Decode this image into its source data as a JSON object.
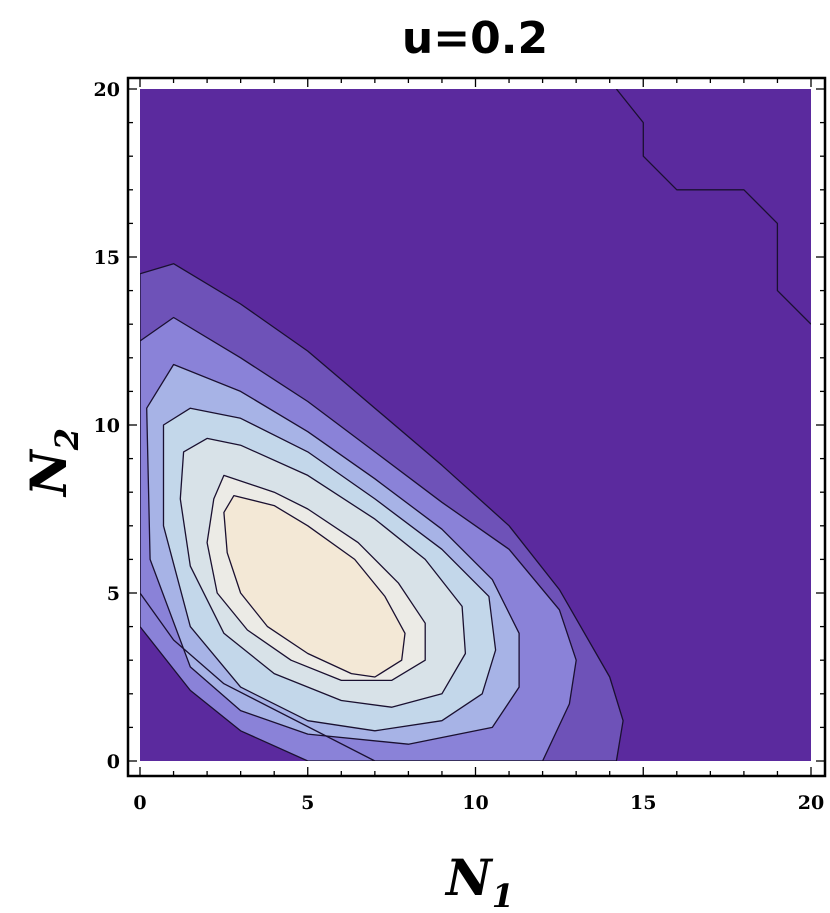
{
  "chart_data": {
    "type": "contour",
    "title": "u=0.2",
    "xlabel": {
      "main": "N",
      "subscript": "1"
    },
    "ylabel": {
      "main": "N",
      "subscript": "2"
    },
    "xlim": [
      0,
      20
    ],
    "ylim": [
      0,
      20
    ],
    "xticks": [
      0,
      5,
      10,
      15,
      20
    ],
    "yticks": [
      0,
      5,
      10,
      15,
      20
    ],
    "xtick_labels": [
      "0",
      "5",
      "10",
      "15",
      "20"
    ],
    "ytick_labels": [
      "0",
      "5",
      "10",
      "15",
      "20"
    ],
    "frame_ticks": "both sides",
    "grid": false,
    "legend": "none",
    "peak": {
      "x": 5.5,
      "y": 4.5
    },
    "background_color": "#5b2a9e",
    "contour_levels": [
      {
        "level": 1,
        "fill": "#6e52b8",
        "points": [
          [
            0,
            14.5
          ],
          [
            1,
            14.8
          ],
          [
            3,
            13.6
          ],
          [
            5,
            12.2
          ],
          [
            7,
            10.5
          ],
          [
            9,
            8.8
          ],
          [
            11,
            7
          ],
          [
            12.5,
            5.1
          ],
          [
            14,
            2.5
          ],
          [
            14.4,
            1.2
          ],
          [
            14.2,
            0
          ],
          [
            7,
            0
          ],
          [
            2.5,
            2.3
          ],
          [
            1,
            3.6
          ],
          [
            0,
            5
          ]
        ]
      },
      {
        "level": 2,
        "fill": "#8a82d8",
        "points": [
          [
            0,
            12.5
          ],
          [
            1,
            13.2
          ],
          [
            3,
            12
          ],
          [
            5,
            10.7
          ],
          [
            7,
            9.2
          ],
          [
            9,
            7.7
          ],
          [
            11,
            6.3
          ],
          [
            12.5,
            4.5
          ],
          [
            13,
            3
          ],
          [
            12.8,
            1.7
          ],
          [
            12,
            0
          ],
          [
            5,
            0
          ],
          [
            3,
            0.9
          ],
          [
            1.5,
            2.1
          ],
          [
            0,
            4
          ]
        ]
      },
      {
        "level": 3,
        "fill": "#a7b3e6",
        "points": [
          [
            0.2,
            10.5
          ],
          [
            1,
            11.8
          ],
          [
            3,
            11
          ],
          [
            5,
            9.8
          ],
          [
            7,
            8.4
          ],
          [
            9,
            6.9
          ],
          [
            10.5,
            5.4
          ],
          [
            11.3,
            3.8
          ],
          [
            11.3,
            2.2
          ],
          [
            10.5,
            1
          ],
          [
            8,
            0.5
          ],
          [
            5,
            0.8
          ],
          [
            3,
            1.5
          ],
          [
            1.5,
            2.8
          ],
          [
            0.3,
            6
          ]
        ]
      },
      {
        "level": 4,
        "fill": "#c3d7ea",
        "points": [
          [
            0.7,
            10
          ],
          [
            1.5,
            10.5
          ],
          [
            3,
            10.2
          ],
          [
            5,
            9.2
          ],
          [
            7,
            7.8
          ],
          [
            9,
            6.3
          ],
          [
            10.4,
            4.9
          ],
          [
            10.6,
            3.3
          ],
          [
            10.2,
            2
          ],
          [
            9,
            1.2
          ],
          [
            7,
            0.9
          ],
          [
            5,
            1.2
          ],
          [
            3,
            2.2
          ],
          [
            1.5,
            4
          ],
          [
            0.7,
            7
          ]
        ]
      },
      {
        "level": 5,
        "fill": "#d8e2e8",
        "points": [
          [
            1.3,
            9.2
          ],
          [
            2,
            9.6
          ],
          [
            3,
            9.4
          ],
          [
            5,
            8.5
          ],
          [
            7,
            7.2
          ],
          [
            8.5,
            6
          ],
          [
            9.6,
            4.6
          ],
          [
            9.7,
            3.2
          ],
          [
            9,
            2
          ],
          [
            7.5,
            1.6
          ],
          [
            6,
            1.8
          ],
          [
            4,
            2.6
          ],
          [
            2.5,
            3.8
          ],
          [
            1.5,
            5.8
          ],
          [
            1.2,
            7.8
          ]
        ]
      },
      {
        "level": 6,
        "fill": "#ecebe6",
        "points": [
          [
            2.5,
            8.5
          ],
          [
            4,
            8
          ],
          [
            5,
            7.5
          ],
          [
            6.5,
            6.5
          ],
          [
            7.7,
            5.3
          ],
          [
            8.5,
            4.1
          ],
          [
            8.5,
            3
          ],
          [
            7.5,
            2.4
          ],
          [
            6,
            2.4
          ],
          [
            4.5,
            3
          ],
          [
            3.2,
            3.9
          ],
          [
            2.3,
            5
          ],
          [
            2,
            6.5
          ],
          [
            2.2,
            7.8
          ]
        ]
      },
      {
        "level": 7,
        "fill": "#f3e8d6",
        "points": [
          [
            2.8,
            7.9
          ],
          [
            4,
            7.6
          ],
          [
            5,
            7
          ],
          [
            6.4,
            6
          ],
          [
            7.3,
            4.9
          ],
          [
            7.9,
            3.8
          ],
          [
            7.8,
            3
          ],
          [
            7,
            2.5
          ],
          [
            6.3,
            2.6
          ],
          [
            5,
            3.2
          ],
          [
            3.8,
            4
          ],
          [
            3,
            5
          ],
          [
            2.6,
            6.2
          ],
          [
            2.5,
            7.4
          ]
        ]
      }
    ],
    "corner_contour": [
      [
        14.2,
        20
      ],
      [
        15,
        19
      ],
      [
        15,
        18
      ],
      [
        16,
        17
      ],
      [
        18,
        17
      ],
      [
        19,
        16
      ],
      [
        19,
        15
      ],
      [
        19,
        14
      ],
      [
        20,
        13
      ]
    ]
  }
}
